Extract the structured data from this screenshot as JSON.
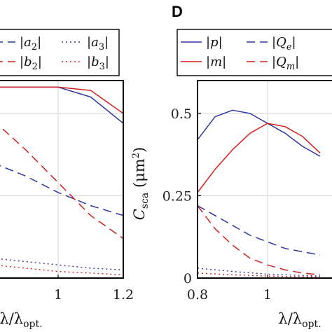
{
  "figure": {
    "panel_letter": "D",
    "left_xlabel": "λ/λopt.",
    "right_xlabel": "λ/λopt.",
    "right_ylabel": "Csca (μm²)"
  },
  "colors": {
    "blue": "#2e36a0",
    "red": "#d42020",
    "grid": "#d9d9d9",
    "axis": "#000000"
  },
  "chart_data": [
    {
      "type": "line",
      "panel": "left",
      "xlim": [
        0.8,
        1.2
      ],
      "x_ticks": [
        1,
        1.2
      ],
      "x_tick_labels": [
        "1",
        "1.2"
      ],
      "ylim": [
        0,
        0.6
      ],
      "grid": true,
      "legend_position": "top",
      "legend": [
        {
          "label": "|a2|",
          "color": "#2e36a0",
          "style": "dashed"
        },
        {
          "label": "|a3|",
          "color": "#2e36a0",
          "style": "dotted"
        },
        {
          "label": "|b2|",
          "color": "#d42020",
          "style": "dashed"
        },
        {
          "label": "|b3|",
          "color": "#d42020",
          "style": "dotted"
        }
      ],
      "series": [
        {
          "color": "#2e36a0",
          "style": "solid",
          "x": [
            0.8,
            0.9,
            1.0,
            1.1,
            1.2
          ],
          "y": [
            0.58,
            0.58,
            0.58,
            0.55,
            0.47
          ]
        },
        {
          "color": "#d42020",
          "style": "solid",
          "x": [
            0.8,
            0.9,
            1.0,
            1.1,
            1.2
          ],
          "y": [
            0.58,
            0.58,
            0.58,
            0.57,
            0.5
          ]
        },
        {
          "name": "|a2|",
          "color": "#2e36a0",
          "style": "dashed",
          "x": [
            0.8,
            0.9,
            1.0,
            1.1,
            1.2
          ],
          "y": [
            0.35,
            0.31,
            0.26,
            0.22,
            0.19
          ]
        },
        {
          "name": "|b2|",
          "color": "#d42020",
          "style": "dashed",
          "x": [
            0.8,
            0.9,
            1.0,
            1.1,
            1.2
          ],
          "y": [
            0.48,
            0.39,
            0.29,
            0.19,
            0.12
          ]
        },
        {
          "name": "|a3|",
          "color": "#2e36a0",
          "style": "dotted",
          "x": [
            0.8,
            0.9,
            1.0,
            1.1,
            1.2
          ],
          "y": [
            0.06,
            0.05,
            0.04,
            0.03,
            0.025
          ]
        },
        {
          "name": "|b3|",
          "color": "#d42020",
          "style": "dotted",
          "x": [
            0.8,
            0.9,
            1.0,
            1.1,
            1.2
          ],
          "y": [
            0.04,
            0.03,
            0.02,
            0.015,
            0.01
          ]
        }
      ]
    },
    {
      "type": "line",
      "panel": "right",
      "xlim": [
        0.8,
        1.2
      ],
      "x_ticks": [
        0.8,
        1
      ],
      "x_tick_labels": [
        "0.8",
        "1"
      ],
      "ylim": [
        0,
        0.6
      ],
      "y_ticks": [
        0,
        0.25,
        0.5
      ],
      "y_tick_labels": [
        "0",
        "0.25",
        "0.5"
      ],
      "grid": true,
      "legend_position": "top",
      "legend": [
        {
          "label": "|p|",
          "color": "#2e36a0",
          "style": "solid"
        },
        {
          "label": "|Qe|",
          "color": "#2e36a0",
          "style": "dashed"
        },
        {
          "label": "|m|",
          "color": "#d42020",
          "style": "solid"
        },
        {
          "label": "|Qm|",
          "color": "#d42020",
          "style": "dashed"
        }
      ],
      "series": [
        {
          "name": "|p|",
          "color": "#2e36a0",
          "style": "solid",
          "x": [
            0.8,
            0.85,
            0.9,
            0.95,
            1.0,
            1.05,
            1.1,
            1.15
          ],
          "y": [
            0.42,
            0.49,
            0.51,
            0.5,
            0.47,
            0.44,
            0.4,
            0.37
          ]
        },
        {
          "name": "|m|",
          "color": "#d42020",
          "style": "solid",
          "x": [
            0.8,
            0.85,
            0.9,
            0.95,
            1.0,
            1.05,
            1.1,
            1.15
          ],
          "y": [
            0.26,
            0.33,
            0.39,
            0.44,
            0.47,
            0.46,
            0.43,
            0.38
          ]
        },
        {
          "name": "|Qe|",
          "color": "#2e36a0",
          "style": "dashed",
          "x": [
            0.8,
            0.85,
            0.9,
            0.95,
            1.0,
            1.05,
            1.1,
            1.15
          ],
          "y": [
            0.22,
            0.19,
            0.16,
            0.13,
            0.11,
            0.09,
            0.08,
            0.07
          ]
        },
        {
          "name": "|Qm|",
          "color": "#d42020",
          "style": "dashed",
          "x": [
            0.8,
            0.85,
            0.9,
            0.95,
            1.0,
            1.05,
            1.1,
            1.15
          ],
          "y": [
            0.22,
            0.15,
            0.1,
            0.06,
            0.04,
            0.025,
            0.015,
            0.01
          ]
        },
        {
          "color": "#2e36a0",
          "style": "dotted",
          "x": [
            0.8,
            0.9,
            1.0,
            1.1,
            1.15
          ],
          "y": [
            0.03,
            0.02,
            0.012,
            0.008,
            0.006
          ]
        },
        {
          "color": "#d42020",
          "style": "dotted",
          "x": [
            0.8,
            0.9,
            1.0,
            1.1,
            1.15
          ],
          "y": [
            0.015,
            0.01,
            0.006,
            0.004,
            0.003
          ]
        }
      ]
    }
  ]
}
